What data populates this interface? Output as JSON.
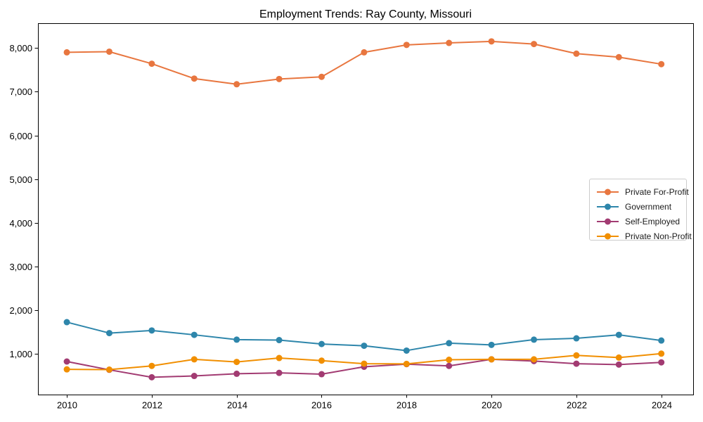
{
  "chart_data": {
    "type": "line",
    "title": "Employment Trends: Ray County, Missouri",
    "xlabel": "",
    "ylabel": "",
    "grid": false,
    "legend_position": "center right",
    "marker": "circle",
    "x": [
      2010,
      2011,
      2012,
      2013,
      2014,
      2015,
      2016,
      2017,
      2018,
      2019,
      2020,
      2021,
      2022,
      2023,
      2024
    ],
    "series": [
      {
        "name": "Private For-Profit",
        "color": "#E8763F",
        "values": [
          7900,
          7915,
          7640,
          7300,
          7170,
          7290,
          7340,
          7900,
          8070,
          8115,
          8150,
          8090,
          7870,
          7790,
          7630
        ]
      },
      {
        "name": "Government",
        "color": "#2E86AB",
        "values": [
          1730,
          1480,
          1540,
          1440,
          1330,
          1320,
          1230,
          1190,
          1080,
          1250,
          1210,
          1330,
          1360,
          1440,
          1310
        ]
      },
      {
        "name": "Self-Employed",
        "color": "#A23B72",
        "values": [
          830,
          640,
          470,
          500,
          550,
          570,
          540,
          710,
          770,
          730,
          880,
          840,
          780,
          760,
          810
        ]
      },
      {
        "name": "Private Non-Profit",
        "color": "#F18F01",
        "values": [
          650,
          645,
          730,
          880,
          820,
          910,
          850,
          780,
          775,
          870,
          880,
          880,
          970,
          920,
          1010
        ]
      }
    ],
    "xlim": [
      2009.32,
      2024.75
    ],
    "ylim": [
      74,
      8566
    ],
    "x_ticks": [
      2010,
      2012,
      2014,
      2016,
      2018,
      2020,
      2022,
      2024
    ],
    "x_tick_labels": [
      "2010",
      "2012",
      "2014",
      "2016",
      "2018",
      "2020",
      "2022",
      "2024"
    ],
    "y_ticks": [
      1000,
      2000,
      3000,
      4000,
      5000,
      6000,
      7000,
      8000
    ],
    "y_tick_labels": [
      "1,000",
      "2,000",
      "3,000",
      "4,000",
      "5,000",
      "6,000",
      "7,000",
      "8,000"
    ],
    "axis_color": "#000000",
    "text_color": "#000000",
    "background_color": "#ffffff"
  }
}
